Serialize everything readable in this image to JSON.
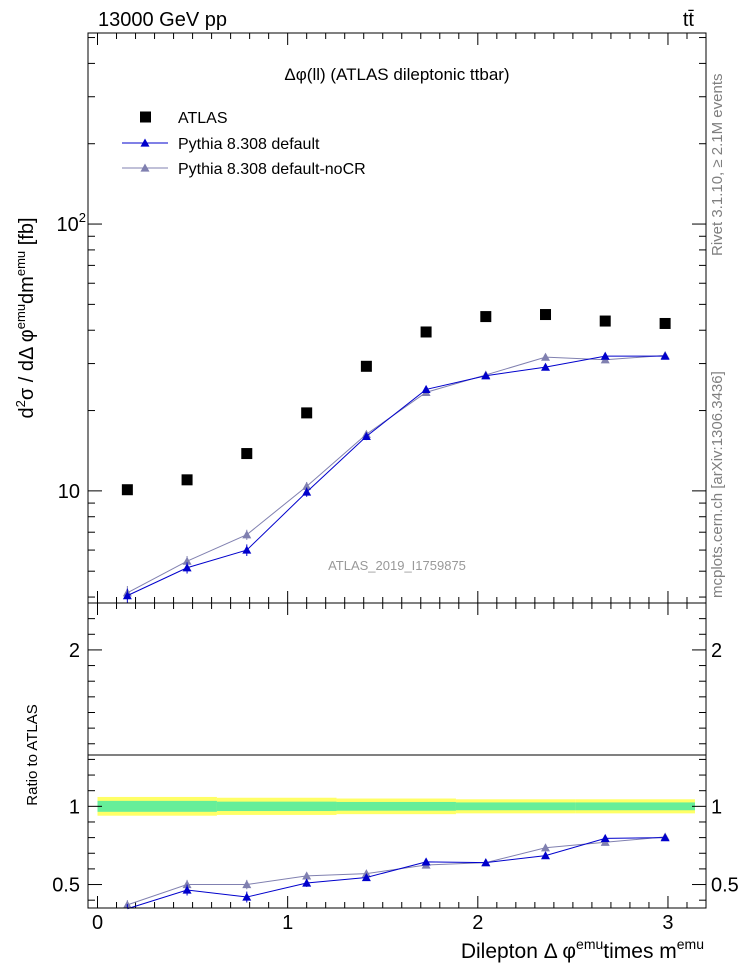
{
  "header": {
    "left": "13000 GeV pp",
    "right": "tt̄"
  },
  "side_labels": {
    "rivet": "Rivet 3.1.10, ≥ 2.1M events",
    "mcplots": "mcplots.cern.ch [arXiv:1306.3436]"
  },
  "colors": {
    "atlas": "#000000",
    "default": "#0000cc",
    "nocr": "#8080b0",
    "band_outer": "#ffff66",
    "band_inner": "#66ee99"
  },
  "chart_data": [
    {
      "type": "scatter",
      "panel": "main",
      "title": "Δφ(ll) (ATLAS dileptonic ttbar)",
      "watermark": "ATLAS_2019_I1759875",
      "ylabel": "d²σ / dΔ φ^emu dm^emu [fb]",
      "ylabel_parts": {
        "base": "d",
        "sup1": "2",
        "mid": "σ / dΔ φ",
        "sup2": "emu",
        "mid2": "dm",
        "sup3": "emu",
        "end": " [fb]"
      },
      "yscale": "log",
      "xlim": [
        -0.05,
        3.2
      ],
      "ylim": [
        3.8,
        520
      ],
      "y_ticks": [
        {
          "value": 10,
          "label": "10"
        },
        {
          "value": 100,
          "label": "10",
          "sup": "2"
        }
      ],
      "legend_position": "top-left",
      "x": [
        0.157,
        0.471,
        0.785,
        1.1,
        1.414,
        1.728,
        2.042,
        2.356,
        2.67,
        2.985
      ],
      "series": [
        {
          "name": "ATLAS",
          "marker": "square",
          "values": [
            10.1,
            11.0,
            13.8,
            19.6,
            29.3,
            39.4,
            45.0,
            45.8,
            43.3,
            42.4
          ]
        },
        {
          "name": "Pythia 8.308 default",
          "marker": "triangle",
          "values": [
            4.05,
            5.15,
            6.0,
            9.9,
            16.0,
            24.0,
            27.0,
            29.1,
            32.0,
            32.0
          ],
          "err": [
            0.25,
            0.25,
            0.3,
            0.4,
            0.5,
            0.6,
            0.7,
            0.7,
            0.8,
            0.8
          ]
        },
        {
          "name": "Pythia 8.308 default-noCR",
          "marker": "triangle",
          "values": [
            4.15,
            5.45,
            6.85,
            10.4,
            16.3,
            23.4,
            27.2,
            31.7,
            31.0,
            32.2
          ],
          "err": [
            0.25,
            0.25,
            0.3,
            0.4,
            0.5,
            0.6,
            0.7,
            0.7,
            0.8,
            0.8
          ]
        }
      ]
    },
    {
      "type": "line",
      "panel": "ratio",
      "ylabel": "Ratio to ATLAS",
      "xlabel": "Dilepton Δ φ^emu times m^emu",
      "xlabel_parts": {
        "a": "Dilepton Δ φ",
        "s1": "emu",
        "b": "times m",
        "s2": "emu"
      },
      "xlim": [
        -0.05,
        3.2
      ],
      "ylim": [
        0.35,
        2.3
      ],
      "x_ticks": [
        0,
        1,
        2,
        3
      ],
      "y_ticks": [
        0.5,
        1,
        2
      ],
      "band_edges": [
        0.0,
        0.628,
        1.257,
        1.885,
        2.513,
        3.142
      ],
      "band_outer": [
        0.06,
        0.055,
        0.05,
        0.045,
        0.045
      ],
      "band_inner": [
        0.035,
        0.03,
        0.028,
        0.025,
        0.025
      ],
      "x": [
        0.157,
        0.471,
        0.785,
        1.1,
        1.414,
        1.728,
        2.042,
        2.356,
        2.67,
        2.985
      ],
      "series": [
        {
          "name": "Pythia 8.308 default",
          "values": [
            0.345,
            0.465,
            0.42,
            0.51,
            0.545,
            0.645,
            0.64,
            0.685,
            0.795,
            0.8
          ],
          "err": [
            0.03,
            0.035,
            0.035,
            0.025,
            0.02,
            0.02,
            0.02,
            0.02,
            0.02,
            0.015
          ]
        },
        {
          "name": "Pythia 8.308 default-noCR",
          "values": [
            0.37,
            0.5,
            0.5,
            0.555,
            0.57,
            0.625,
            0.64,
            0.735,
            0.77,
            0.805
          ],
          "err": [
            0.03,
            0.03,
            0.03,
            0.02,
            0.02,
            0.02,
            0.02,
            0.015,
            0.015,
            0.015
          ]
        }
      ]
    }
  ]
}
